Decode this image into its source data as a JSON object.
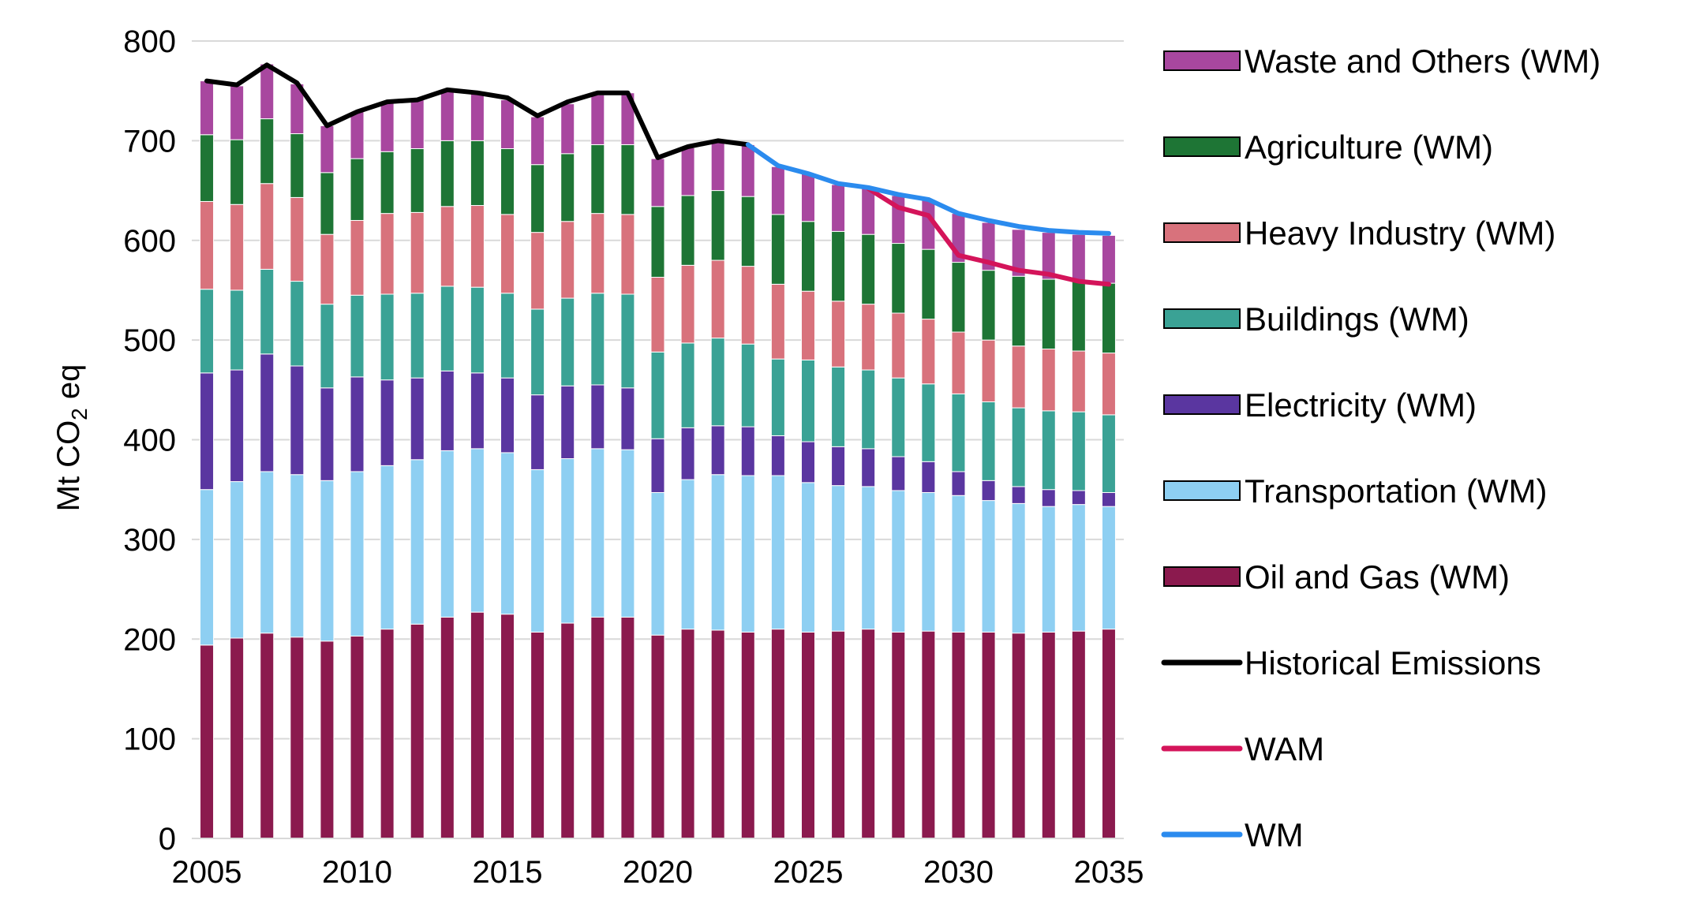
{
  "chart_data": {
    "type": "stacked-bar-with-lines",
    "ylabel": {
      "prefix": "Mt CO",
      "subscript": "2",
      "suffix": " eq"
    },
    "ylim": [
      0,
      800
    ],
    "yticks": [
      0,
      100,
      200,
      300,
      400,
      500,
      600,
      700,
      800
    ],
    "xticks": [
      2005,
      2010,
      2015,
      2020,
      2025,
      2030,
      2035
    ],
    "years": [
      2005,
      2006,
      2007,
      2008,
      2009,
      2010,
      2011,
      2012,
      2013,
      2014,
      2015,
      2016,
      2017,
      2018,
      2019,
      2020,
      2021,
      2022,
      2023,
      2024,
      2025,
      2026,
      2027,
      2028,
      2029,
      2030,
      2031,
      2032,
      2033,
      2034,
      2035
    ],
    "series": [
      {
        "name": "Oil and Gas (WM)",
        "color": "#8B1A4E",
        "values": [
          194,
          201,
          206,
          202,
          198,
          203,
          210,
          215,
          222,
          227,
          225,
          207,
          216,
          222,
          222,
          204,
          210,
          209,
          207,
          210,
          207,
          208,
          210,
          207,
          208,
          207,
          207,
          206,
          207,
          208,
          210
        ]
      },
      {
        "name": "Transportation (WM)",
        "color": "#8ECFF2",
        "values": [
          156,
          157,
          162,
          163,
          161,
          165,
          164,
          165,
          167,
          164,
          162,
          163,
          165,
          169,
          168,
          143,
          150,
          156,
          157,
          154,
          150,
          146,
          143,
          142,
          139,
          137,
          132,
          130,
          126,
          127,
          123
        ]
      },
      {
        "name": "Electricity (WM)",
        "color": "#5A36A0",
        "values": [
          117,
          112,
          118,
          109,
          93,
          95,
          86,
          82,
          80,
          76,
          75,
          75,
          73,
          64,
          62,
          54,
          52,
          49,
          49,
          40,
          41,
          39,
          38,
          34,
          31,
          24,
          20,
          17,
          17,
          14,
          14
        ]
      },
      {
        "name": "Buildings (WM)",
        "color": "#3AA295",
        "values": [
          84,
          80,
          85,
          85,
          84,
          82,
          86,
          85,
          85,
          86,
          85,
          86,
          88,
          92,
          94,
          87,
          85,
          88,
          83,
          77,
          82,
          80,
          79,
          79,
          78,
          78,
          79,
          79,
          79,
          79,
          78
        ]
      },
      {
        "name": "Heavy Industry (WM)",
        "color": "#D8727C",
        "values": [
          88,
          86,
          86,
          84,
          70,
          75,
          81,
          81,
          80,
          82,
          79,
          77,
          77,
          80,
          80,
          75,
          78,
          78,
          78,
          75,
          69,
          66,
          66,
          65,
          65,
          62,
          62,
          62,
          62,
          61,
          62
        ]
      },
      {
        "name": "Agriculture (WM)",
        "color": "#1E7535",
        "values": [
          67,
          65,
          65,
          64,
          62,
          62,
          62,
          64,
          66,
          65,
          66,
          68,
          68,
          69,
          70,
          71,
          70,
          70,
          70,
          70,
          70,
          70,
          70,
          70,
          70,
          70,
          70,
          70,
          70,
          70,
          70
        ]
      },
      {
        "name": "Waste and Others (WM)",
        "color": "#A8479F",
        "values": [
          54,
          54,
          55,
          50,
          47,
          47,
          50,
          49,
          51,
          48,
          49,
          48,
          50,
          50,
          52,
          48,
          48,
          51,
          52,
          48,
          48,
          47,
          46,
          48,
          50,
          49,
          48,
          47,
          47,
          47,
          48
        ]
      }
    ],
    "lines": [
      {
        "name": "Historical Emissions",
        "color": "#000000",
        "x": [
          2005,
          2006,
          2007,
          2008,
          2009,
          2010,
          2011,
          2012,
          2013,
          2014,
          2015,
          2016,
          2017,
          2018,
          2019,
          2020,
          2021,
          2022,
          2023
        ],
        "y": [
          760,
          756,
          776,
          758,
          715,
          729,
          739,
          741,
          751,
          748,
          743,
          725,
          739,
          748,
          748,
          683,
          694,
          700,
          696
        ]
      },
      {
        "name": "WAM",
        "color": "#D4145A",
        "x": [
          2027,
          2028,
          2029,
          2030,
          2031,
          2032,
          2033,
          2034,
          2035
        ],
        "y": [
          652,
          633,
          625,
          585,
          578,
          570,
          566,
          559,
          556
        ]
      },
      {
        "name": "WM",
        "color": "#2B8BEE",
        "x": [
          2023,
          2024,
          2025,
          2026,
          2027,
          2028,
          2029,
          2030,
          2031,
          2032,
          2033,
          2034,
          2035
        ],
        "y": [
          696,
          675,
          667,
          657,
          653,
          646,
          641,
          627,
          620,
          614,
          610,
          608,
          607
        ]
      }
    ],
    "legend": [
      {
        "label": "Waste and Others (WM)",
        "kind": "box",
        "color": "#A8479F"
      },
      {
        "label": "Agriculture (WM)",
        "kind": "box",
        "color": "#1E7535"
      },
      {
        "label": "Heavy Industry (WM)",
        "kind": "box",
        "color": "#D8727C"
      },
      {
        "label": "Buildings (WM)",
        "kind": "box",
        "color": "#3AA295"
      },
      {
        "label": "Electricity (WM)",
        "kind": "box",
        "color": "#5A36A0"
      },
      {
        "label": "Transportation (WM)",
        "kind": "box",
        "color": "#8ECFF2"
      },
      {
        "label": "Oil and Gas (WM)",
        "kind": "box",
        "color": "#8B1A4E"
      },
      {
        "label": "Historical Emissions",
        "kind": "line",
        "color": "#000000"
      },
      {
        "label": "WAM",
        "kind": "line",
        "color": "#D4145A"
      },
      {
        "label": "WM",
        "kind": "line",
        "color": "#2B8BEE"
      }
    ],
    "legend_position": "right",
    "grid": true
  }
}
